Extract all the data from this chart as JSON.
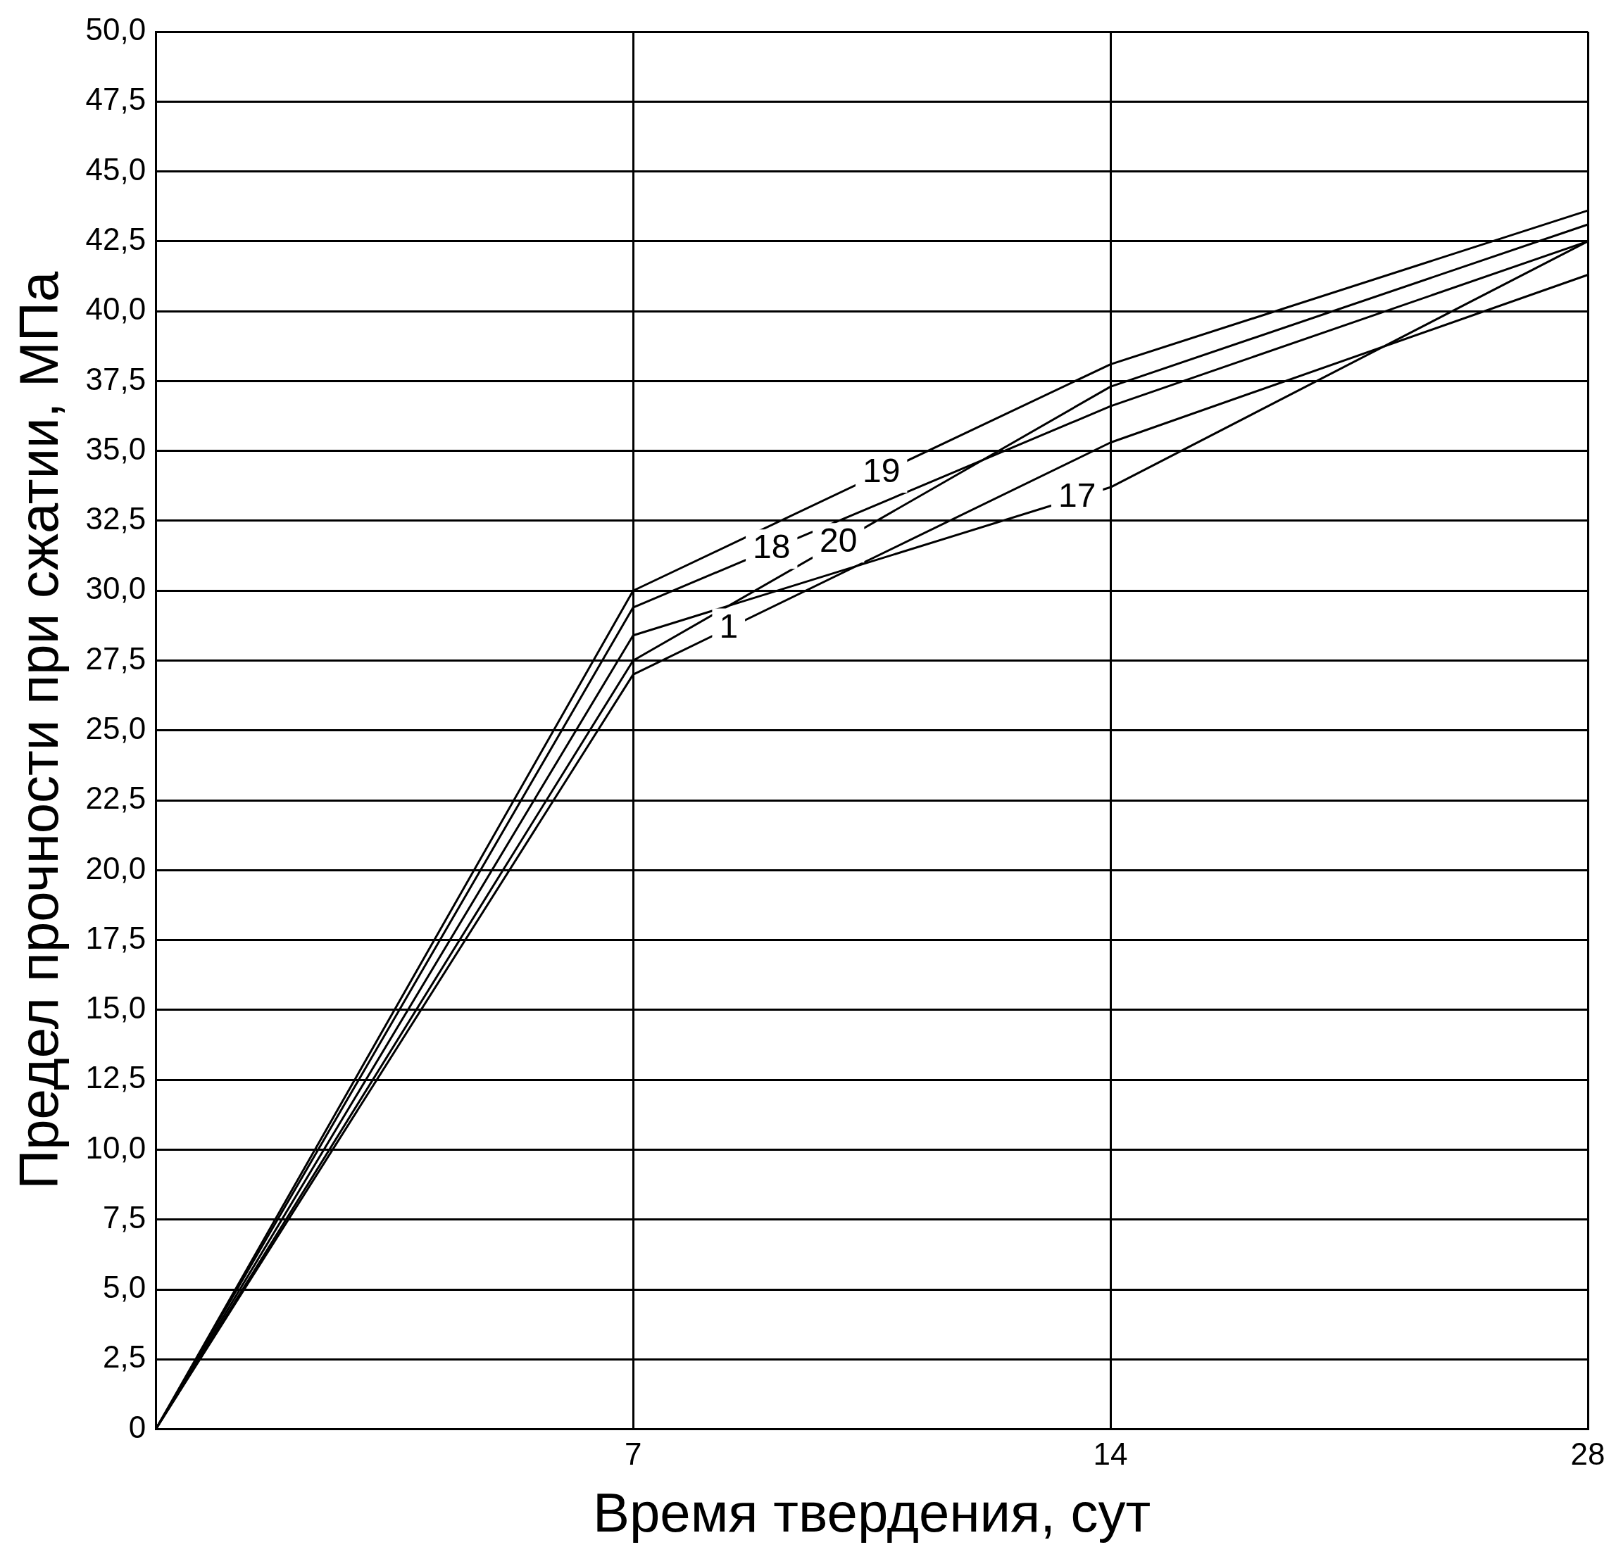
{
  "chart_data": {
    "type": "line",
    "xlabel": "Время твердения, сут",
    "ylabel": "Предел прочности при сжатии, МПа",
    "categories": [
      null,
      "7",
      "14",
      "28"
    ],
    "series": [
      {
        "name": "19",
        "color": "#000000",
        "values": [
          0,
          30.0,
          38.1,
          43.6
        ]
      },
      {
        "name": "18",
        "color": "#000000",
        "values": [
          0,
          29.4,
          36.6,
          42.5
        ]
      },
      {
        "name": "20",
        "color": "#000000",
        "values": [
          0,
          27.5,
          37.3,
          43.1
        ]
      },
      {
        "name": "1",
        "color": "#000000",
        "values": [
          0,
          27.0,
          35.3,
          41.3
        ]
      },
      {
        "name": "17",
        "color": "#000000",
        "values": [
          0,
          28.4,
          33.7,
          42.5
        ]
      }
    ],
    "ylim": [
      0,
      50
    ],
    "yticks": [
      {
        "value": 0,
        "label": "0"
      },
      {
        "value": 2.5,
        "label": "2,5"
      },
      {
        "value": 5,
        "label": "5,0"
      },
      {
        "value": 7.5,
        "label": "7,5"
      },
      {
        "value": 10,
        "label": "10,0"
      },
      {
        "value": 12.5,
        "label": "12,5"
      },
      {
        "value": 15,
        "label": "15,0"
      },
      {
        "value": 17.5,
        "label": "17,5"
      },
      {
        "value": 20,
        "label": "20,0"
      },
      {
        "value": 22.5,
        "label": "22,5"
      },
      {
        "value": 25,
        "label": "25,0"
      },
      {
        "value": 27.5,
        "label": "27,5"
      },
      {
        "value": 30,
        "label": "30,0"
      },
      {
        "value": 32.5,
        "label": "32,5"
      },
      {
        "value": 35,
        "label": "35,0"
      },
      {
        "value": 37.5,
        "label": "37,5"
      },
      {
        "value": 40,
        "label": "40,0"
      },
      {
        "value": 42.5,
        "label": "42,5"
      },
      {
        "value": 45,
        "label": "45,0"
      },
      {
        "value": 47.5,
        "label": "47,5"
      },
      {
        "value": 50,
        "label": "50,0"
      }
    ],
    "grid": true,
    "legend": false,
    "marker": "none",
    "line_style": "solid"
  }
}
